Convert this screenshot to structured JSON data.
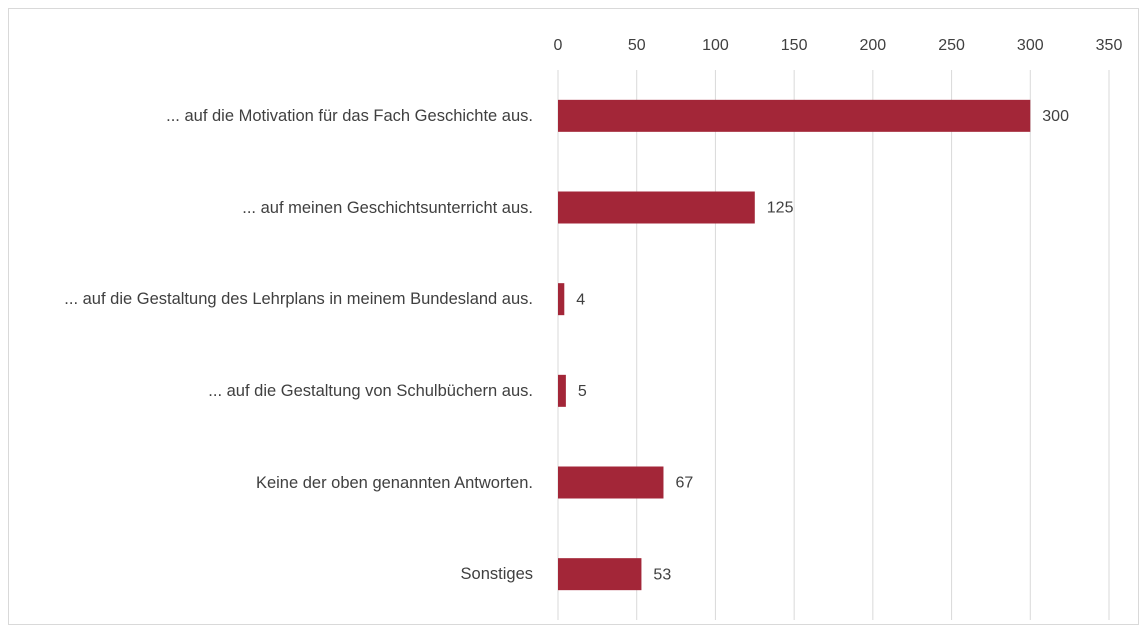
{
  "chart_data": {
    "type": "bar",
    "orientation": "horizontal",
    "categories": [
      "... auf die Motivation für das Fach Geschichte aus.",
      "... auf meinen Geschichtsunterricht aus.",
      "... auf die Gestaltung des Lehrplans in meinem Bundesland aus.",
      "... auf die Gestaltung von Schulbüchern aus.",
      "Keine der oben genannten Antworten.",
      "Sonstiges"
    ],
    "values": [
      300,
      125,
      4,
      5,
      67,
      53
    ],
    "color": "#a32638",
    "xlim": [
      0,
      350
    ],
    "xticks": [
      0,
      50,
      100,
      150,
      200,
      250,
      300,
      350
    ],
    "grid": true
  }
}
